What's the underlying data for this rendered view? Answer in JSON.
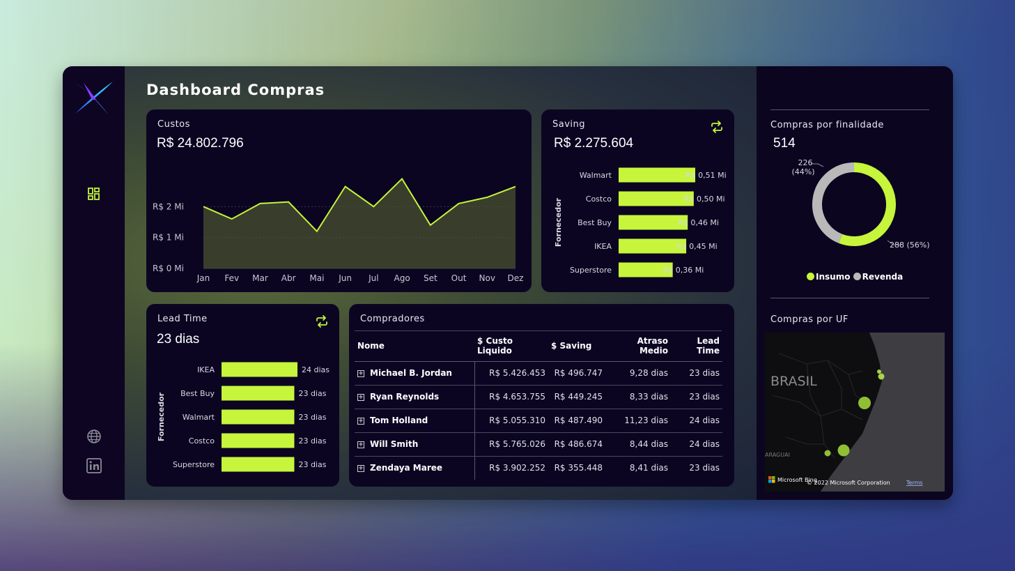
{
  "page": {
    "title": "Dashboard Compras"
  },
  "colors": {
    "accent": "#c6f53b",
    "card_bg": "#0b0522",
    "revenda": "#b9b9b9"
  },
  "sidebar": {
    "icons": [
      "app-logo",
      "dashboard-icon",
      "globe-icon",
      "linkedin-icon"
    ]
  },
  "custos": {
    "title": "Custos",
    "value": "R$ 24.802.796",
    "chart_data": {
      "type": "area",
      "categories": [
        "Jan",
        "Fev",
        "Mar",
        "Abr",
        "Mai",
        "Jun",
        "Jul",
        "Ago",
        "Set",
        "Out",
        "Nov",
        "Dez"
      ],
      "values": [
        2.0,
        1.6,
        2.1,
        2.15,
        1.2,
        2.65,
        2.0,
        2.9,
        1.4,
        2.1,
        2.3,
        2.65
      ],
      "yticks": [
        "R$ 2 Mi",
        "R$ 1 Mi",
        "R$ 0 Mi"
      ],
      "ytick_values": [
        2,
        1,
        0
      ],
      "ylim": [
        0,
        3.0
      ]
    }
  },
  "saving": {
    "title": "Saving",
    "value": "R$ 2.275.604",
    "axis_label": "Fornecedor",
    "chart_data": {
      "type": "bar",
      "categories": [
        "Walmart",
        "Costco",
        "Best Buy",
        "IKEA",
        "Superstore"
      ],
      "values": [
        0.51,
        0.5,
        0.46,
        0.45,
        0.36
      ],
      "labels": [
        "R$ 0,51 Mi",
        "R$ 0,50 Mi",
        "R$ 0,46 Mi",
        "R$ 0,45 Mi",
        "R$ 0,36 Mi"
      ],
      "xlim": [
        0,
        0.51
      ]
    }
  },
  "lead_time": {
    "title": "Lead Time",
    "value": "23 dias",
    "axis_label": "Fornecedor",
    "chart_data": {
      "type": "bar",
      "categories": [
        "IKEA",
        "Best Buy",
        "Walmart",
        "Costco",
        "Superstore"
      ],
      "values": [
        24,
        23,
        23,
        23,
        23
      ],
      "labels": [
        "24 dias",
        "23 dias",
        "23 dias",
        "23 dias",
        "23 dias"
      ],
      "xlim": [
        0,
        24
      ]
    }
  },
  "compradores": {
    "title": "Compradores",
    "columns": [
      "Nome",
      "$ Custo Liquido",
      "$ Saving",
      "Atraso Medio",
      "Lead Time"
    ],
    "rows": [
      [
        "Michael B. Jordan",
        "R$ 5.426.453",
        "R$ 496.747",
        "9,28 dias",
        "23 dias"
      ],
      [
        "Ryan Reynolds",
        "R$ 4.653.755",
        "R$ 449.245",
        "8,33 dias",
        "23 dias"
      ],
      [
        "Tom Holland",
        "R$ 5.055.310",
        "R$ 487.490",
        "11,23 dias",
        "24 dias"
      ],
      [
        "Will Smith",
        "R$ 5.765.026",
        "R$ 486.674",
        "8,44 dias",
        "24 dias"
      ],
      [
        "Zendaya Maree",
        "R$ 3.902.252",
        "R$ 355.448",
        "8,41 dias",
        "23 dias"
      ]
    ]
  },
  "finalidade": {
    "title": "Compras por finalidade",
    "value": "514",
    "chart_data": {
      "type": "pie",
      "categories": [
        "Insumo",
        "Revenda"
      ],
      "values": [
        288,
        226
      ],
      "labels": [
        "288 (56%)",
        "226 (44%)"
      ],
      "revenda_label_top": "226",
      "revenda_label_bottom": "(44%)"
    },
    "legend": [
      "Insumo",
      "Revenda"
    ]
  },
  "uf": {
    "title": "Compras por UF",
    "map_label": "BRASIL",
    "map_label2": "ARAGUAI",
    "attribution": "Microsoft Bing",
    "copyright": "© 2022 Microsoft Corporation",
    "terms": "Terms"
  }
}
